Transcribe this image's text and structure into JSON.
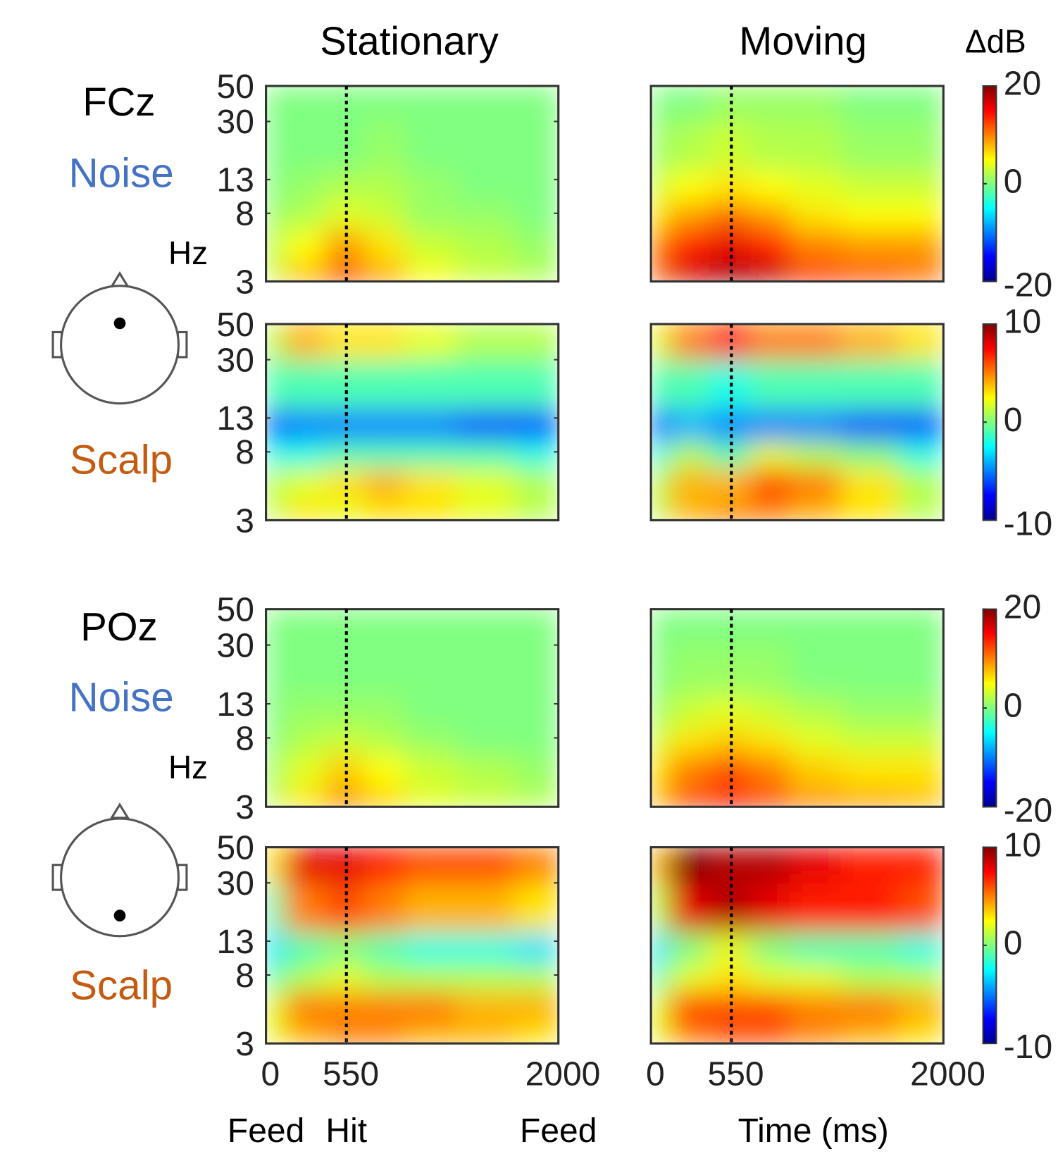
{
  "column_titles": [
    "Stationary",
    "Moving"
  ],
  "electrodes": [
    "FCz",
    "POz"
  ],
  "row_labels": [
    {
      "text": "Noise",
      "color": "#4472c4"
    },
    {
      "text": "Scalp",
      "color": "#c55a11"
    },
    {
      "text": "Noise",
      "color": "#4472c4"
    },
    {
      "text": "Scalp",
      "color": "#c55a11"
    }
  ],
  "chart_data": [
    {
      "type": "heatmap",
      "ylabel": "Hz",
      "x": [
        0,
        250,
        550,
        800,
        1100,
        1500,
        1900
      ],
      "y": [
        3,
        5,
        8,
        11,
        20,
        45
      ],
      "values": [
        [
          3,
          8,
          13,
          9,
          5,
          3,
          2
        ],
        [
          2,
          5,
          9,
          6,
          3,
          2,
          1
        ],
        [
          1,
          2,
          4,
          3,
          1,
          1,
          0
        ],
        [
          0,
          1,
          2,
          2,
          1,
          0,
          0
        ],
        [
          0,
          0,
          0,
          1,
          0,
          0,
          0
        ],
        [
          0,
          0,
          0,
          0,
          0,
          0,
          0
        ]
      ],
      "xlim": [
        0,
        2000
      ],
      "ylim": [
        3,
        50
      ],
      "yscale": "log",
      "yticks": [
        3,
        8,
        13,
        30,
        50
      ],
      "clim": [
        -20,
        20
      ],
      "colormap": "jet",
      "vline": 550
    },
    {
      "type": "heatmap",
      "colorbar_label": "ΔdB",
      "x": [
        0,
        250,
        550,
        800,
        1100,
        1500,
        1900
      ],
      "y": [
        3,
        5,
        8,
        11,
        20,
        45
      ],
      "values": [
        [
          12,
          17,
          19,
          18,
          15,
          13,
          11
        ],
        [
          10,
          14,
          16,
          14,
          10,
          9,
          9
        ],
        [
          6,
          9,
          11,
          9,
          6,
          5,
          5
        ],
        [
          3,
          5,
          6,
          5,
          4,
          3,
          3
        ],
        [
          1,
          2,
          3,
          2,
          2,
          1,
          1
        ],
        [
          0,
          0,
          1,
          1,
          1,
          0,
          0
        ]
      ],
      "xlim": [
        0,
        2000
      ],
      "ylim": [
        3,
        50
      ],
      "yscale": "log",
      "clim": [
        -20,
        20
      ],
      "cticks": [
        -20,
        0,
        20
      ],
      "colormap": "jet",
      "vline": 550
    },
    {
      "type": "heatmap",
      "x": [
        0,
        250,
        550,
        800,
        1100,
        1500,
        1900
      ],
      "y": [
        3,
        5,
        8,
        11,
        20,
        45
      ],
      "values": [
        [
          1,
          3,
          2,
          3,
          3,
          2,
          1
        ],
        [
          1,
          2,
          3,
          4,
          3,
          2,
          1
        ],
        [
          -2,
          -2,
          -1,
          -1,
          -1,
          -1,
          -2
        ],
        [
          -6,
          -5,
          -5,
          -5,
          -5,
          -6,
          -6
        ],
        [
          -1,
          -1,
          -1,
          -1,
          -1,
          -1,
          -1
        ],
        [
          1,
          4,
          3,
          3,
          2,
          1,
          1
        ]
      ],
      "xlim": [
        0,
        2000
      ],
      "ylim": [
        3,
        50
      ],
      "yscale": "log",
      "yticks": [
        3,
        8,
        13,
        30,
        50
      ],
      "clim": [
        -10,
        10
      ],
      "colormap": "jet",
      "vline": 550
    },
    {
      "type": "heatmap",
      "x": [
        0,
        250,
        550,
        800,
        1100,
        1500,
        1900
      ],
      "y": [
        3,
        5,
        8,
        11,
        20,
        45
      ],
      "values": [
        [
          1,
          4,
          5,
          5,
          4,
          3,
          1
        ],
        [
          1,
          4,
          4,
          6,
          5,
          3,
          1
        ],
        [
          -2,
          1,
          -1,
          2,
          1,
          0,
          -2
        ],
        [
          -6,
          -4,
          -5,
          -5,
          -5,
          -6,
          -6
        ],
        [
          -1,
          -1,
          -2,
          -1,
          -1,
          -1,
          -1
        ],
        [
          2,
          5,
          7,
          5,
          5,
          4,
          3
        ]
      ],
      "xlim": [
        0,
        2000
      ],
      "ylim": [
        3,
        50
      ],
      "yscale": "log",
      "clim": [
        -10,
        10
      ],
      "cticks": [
        -10,
        0,
        10
      ],
      "colormap": "jet",
      "vline": 550
    },
    {
      "type": "heatmap",
      "ylabel": "Hz",
      "x": [
        0,
        250,
        550,
        800,
        1100,
        1500,
        1900
      ],
      "y": [
        3,
        5,
        8,
        11,
        20,
        45
      ],
      "values": [
        [
          2,
          6,
          10,
          7,
          4,
          3,
          2
        ],
        [
          1,
          4,
          7,
          5,
          3,
          2,
          1
        ],
        [
          0,
          2,
          3,
          2,
          1,
          0,
          0
        ],
        [
          0,
          1,
          1,
          1,
          0,
          0,
          0
        ],
        [
          0,
          0,
          0,
          0,
          0,
          0,
          0
        ],
        [
          0,
          0,
          0,
          0,
          0,
          0,
          0
        ]
      ],
      "xlim": [
        0,
        2000
      ],
      "ylim": [
        3,
        50
      ],
      "yscale": "log",
      "yticks": [
        3,
        8,
        13,
        30,
        50
      ],
      "clim": [
        -20,
        20
      ],
      "colormap": "jet",
      "vline": 550
    },
    {
      "type": "heatmap",
      "x": [
        0,
        250,
        550,
        800,
        1100,
        1500,
        1900
      ],
      "y": [
        3,
        5,
        8,
        11,
        20,
        45
      ],
      "values": [
        [
          8,
          13,
          15,
          13,
          10,
          9,
          8
        ],
        [
          6,
          10,
          12,
          10,
          7,
          6,
          6
        ],
        [
          3,
          6,
          7,
          6,
          4,
          3,
          3
        ],
        [
          1,
          3,
          4,
          3,
          2,
          1,
          1
        ],
        [
          0,
          1,
          1,
          1,
          0,
          0,
          0
        ],
        [
          0,
          0,
          0,
          0,
          0,
          0,
          0
        ]
      ],
      "xlim": [
        0,
        2000
      ],
      "ylim": [
        3,
        50
      ],
      "yscale": "log",
      "clim": [
        -20,
        20
      ],
      "cticks": [
        -20,
        0,
        20
      ],
      "colormap": "jet",
      "vline": 550
    },
    {
      "type": "heatmap",
      "x": [
        0,
        250,
        550,
        800,
        1100,
        1500,
        1900
      ],
      "y": [
        3,
        5,
        8,
        11,
        20,
        45
      ],
      "values": [
        [
          2,
          4,
          5,
          5,
          4,
          4,
          3
        ],
        [
          2,
          5,
          5,
          5,
          5,
          4,
          4
        ],
        [
          -1,
          1,
          2,
          1,
          1,
          1,
          1
        ],
        [
          -3,
          -1,
          0,
          -1,
          -2,
          -2,
          -3
        ],
        [
          -1,
          5,
          6,
          5,
          4,
          4,
          3
        ],
        [
          3,
          8,
          8,
          7,
          6,
          6,
          5
        ]
      ],
      "xlim": [
        0,
        2000
      ],
      "ylim": [
        3,
        50
      ],
      "yscale": "log",
      "yticks": [
        3,
        8,
        13,
        30,
        50
      ],
      "xticks": [
        0,
        550,
        2000
      ],
      "event_labels": [
        "Feed",
        "Hit",
        "Feed"
      ],
      "clim": [
        -10,
        10
      ],
      "colormap": "jet",
      "vline": 550
    },
    {
      "type": "heatmap",
      "xlabel": "Time (ms)",
      "x": [
        0,
        250,
        550,
        800,
        1100,
        1500,
        1900
      ],
      "y": [
        3,
        5,
        8,
        11,
        20,
        45
      ],
      "values": [
        [
          2,
          5,
          6,
          6,
          5,
          4,
          3
        ],
        [
          2,
          6,
          6,
          6,
          5,
          5,
          4
        ],
        [
          -1,
          2,
          3,
          2,
          2,
          1,
          1
        ],
        [
          -3,
          0,
          2,
          0,
          -1,
          -1,
          -2
        ],
        [
          1,
          8,
          9,
          8,
          7,
          7,
          6
        ],
        [
          4,
          10,
          9,
          9,
          8,
          7,
          7
        ]
      ],
      "xlim": [
        0,
        2000
      ],
      "ylim": [
        3,
        50
      ],
      "yscale": "log",
      "xticks": [
        0,
        550,
        2000
      ],
      "clim": [
        -10,
        10
      ],
      "cticks": [
        -10,
        0,
        10
      ],
      "colormap": "jet",
      "vline": 550
    }
  ]
}
